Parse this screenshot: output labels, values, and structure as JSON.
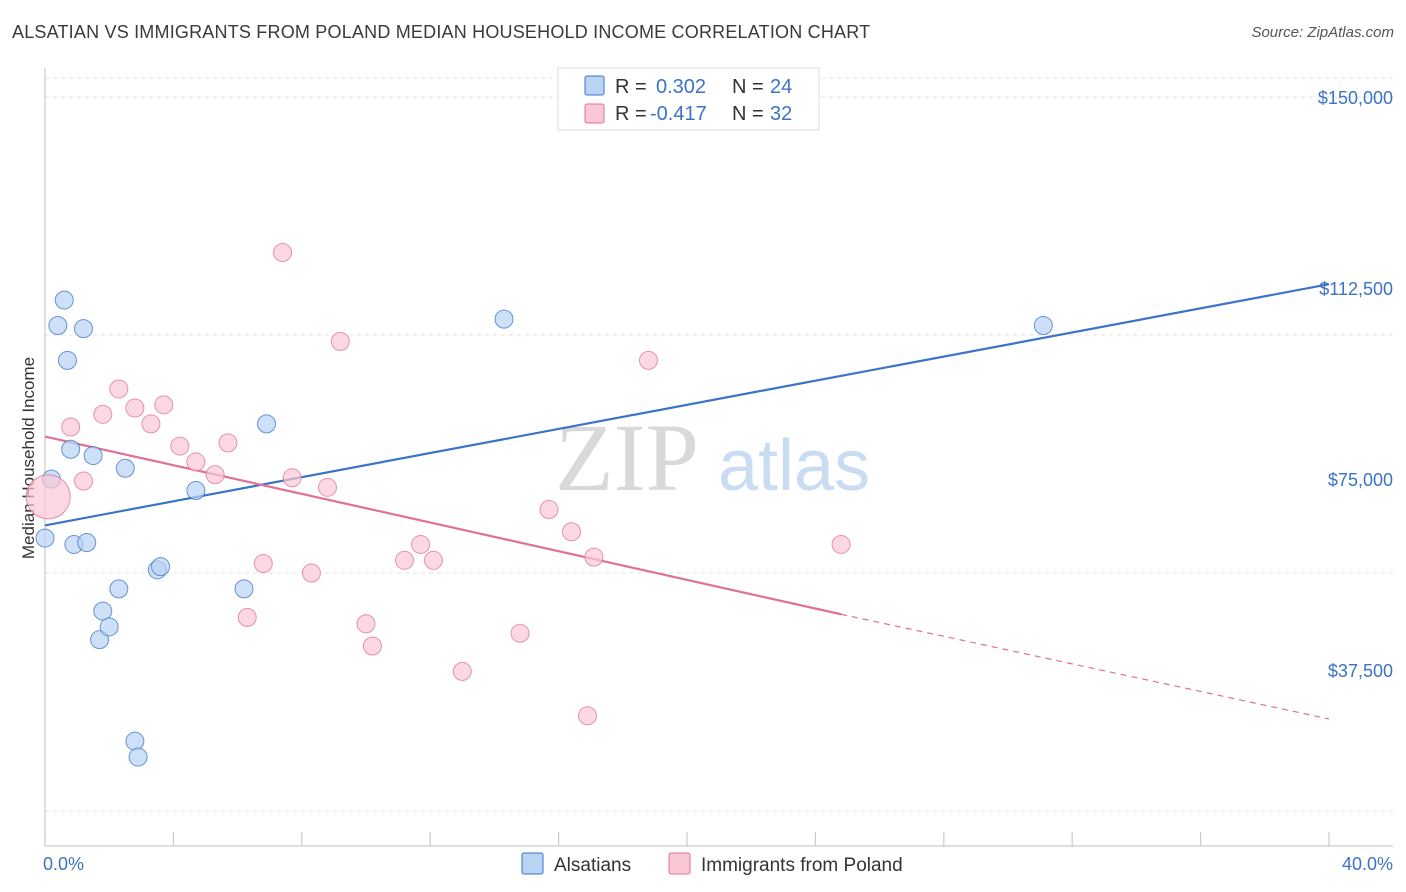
{
  "header": {
    "title": "ALSATIAN VS IMMIGRANTS FROM POLAND MEDIAN HOUSEHOLD INCOME CORRELATION CHART",
    "source": "Source: ZipAtlas.com"
  },
  "watermark": {
    "zip": "ZIP",
    "atlas": "atlas"
  },
  "legend": {
    "rows": [
      {
        "r_label": "R =",
        "r_value": "0.302",
        "n_label": "N =",
        "n_value": "24"
      },
      {
        "r_label": "R =",
        "r_value": "-0.417",
        "n_label": "N =",
        "n_value": "32"
      }
    ]
  },
  "bottom_legend": [
    "Alsatians",
    "Immigrants from Poland"
  ],
  "axis": {
    "ylabel": "Median Household Income",
    "yticks": [
      "$150,000",
      "$112,500",
      "$75,000",
      "$37,500"
    ],
    "x_left": "0.0%",
    "x_right": "40.0%"
  },
  "colors": {
    "blue": "#3b73c7",
    "blue_fill": "#b9d3f3",
    "pink": "#e07099",
    "pink_fill": "#f9c7d6"
  },
  "chart_data": {
    "type": "scatter",
    "xlim": [
      0,
      40
    ],
    "ylim": [
      0,
      160000
    ],
    "yticks": [
      37500,
      75000,
      112500,
      150000
    ],
    "grid": true,
    "series": [
      {
        "name": "Alsatians",
        "color": "#3b73c7",
        "points": [
          [
            0.0,
            80500
          ],
          [
            0.2,
            89800
          ],
          [
            0.4,
            114000
          ],
          [
            0.6,
            118000
          ],
          [
            0.7,
            108500
          ],
          [
            0.8,
            94500
          ],
          [
            0.9,
            79500
          ],
          [
            1.2,
            113500
          ],
          [
            1.3,
            79800
          ],
          [
            1.5,
            93500
          ],
          [
            1.7,
            64500
          ],
          [
            1.8,
            69000
          ],
          [
            2.0,
            66500
          ],
          [
            2.3,
            72500
          ],
          [
            2.5,
            91500
          ],
          [
            2.8,
            48500
          ],
          [
            2.9,
            46000
          ],
          [
            3.5,
            75500
          ],
          [
            3.6,
            76000
          ],
          [
            4.7,
            88000
          ],
          [
            6.2,
            72500
          ],
          [
            6.9,
            98500
          ],
          [
            14.3,
            115000
          ],
          [
            31.1,
            114000
          ]
        ],
        "trend": {
          "x": [
            0,
            40
          ],
          "y": [
            82500,
            120500
          ],
          "style": "solid"
        }
      },
      {
        "name": "Immigrants from Poland",
        "color": "#e07099",
        "points": [
          [
            0.1,
            87000
          ],
          [
            0.8,
            98000
          ],
          [
            1.2,
            89500
          ],
          [
            1.8,
            100000
          ],
          [
            2.3,
            104000
          ],
          [
            2.8,
            101000
          ],
          [
            3.3,
            98500
          ],
          [
            3.7,
            101500
          ],
          [
            4.2,
            95000
          ],
          [
            4.7,
            92500
          ],
          [
            5.3,
            90500
          ],
          [
            5.7,
            95500
          ],
          [
            6.3,
            68000
          ],
          [
            6.8,
            76500
          ],
          [
            7.4,
            125500
          ],
          [
            7.7,
            90000
          ],
          [
            8.3,
            75000
          ],
          [
            8.8,
            88500
          ],
          [
            9.2,
            111500
          ],
          [
            10.0,
            67000
          ],
          [
            10.2,
            63500
          ],
          [
            11.2,
            77000
          ],
          [
            11.7,
            79500
          ],
          [
            12.1,
            77000
          ],
          [
            13.0,
            59500
          ],
          [
            14.8,
            65500
          ],
          [
            15.7,
            85000
          ],
          [
            16.4,
            81500
          ],
          [
            16.9,
            52500
          ],
          [
            17.1,
            77500
          ],
          [
            18.8,
            108500
          ],
          [
            24.8,
            79500
          ]
        ],
        "trend": {
          "x": [
            0,
            24.8
          ],
          "y": [
            96500,
            68500
          ],
          "x_dashed_end": 40,
          "y_dashed_end": 52000,
          "style": "solid-then-dashed"
        }
      }
    ]
  }
}
